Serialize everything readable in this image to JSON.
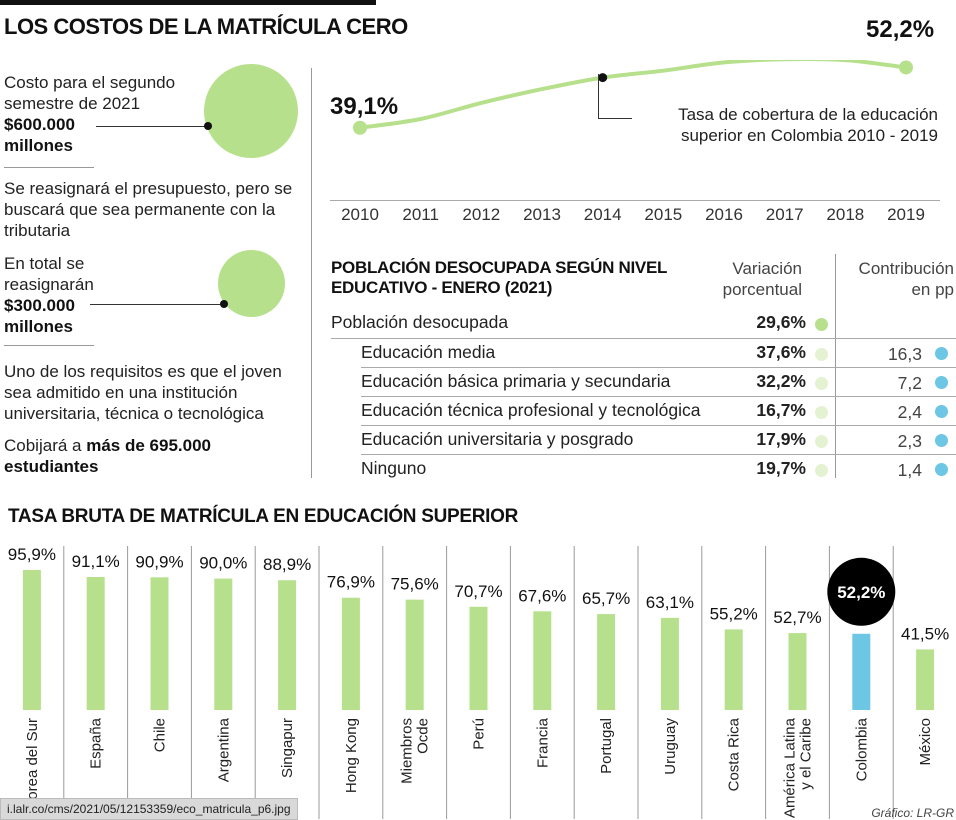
{
  "header": {
    "title": "LOS COSTOS DE LA MATRÍCULA CERO"
  },
  "left": {
    "block1": {
      "text": "Costo para el segundo semestre de 2021",
      "amount": "$600.000",
      "unit": "millones"
    },
    "block2": {
      "text": "Se reasignará el presupuesto, pero se buscará que sea permanente con la tributaria"
    },
    "block3": {
      "text": "En total se reasignarán",
      "amount": "$300.000",
      "unit": "millones"
    },
    "block4": {
      "text": "Uno de los requisitos es que el joven sea admitido en una institución universitaria, técnica o tecnológica"
    },
    "block5": {
      "pre": "Cobijará a ",
      "bold": "más de 695.000 estudiantes"
    }
  },
  "coverage": {
    "start_label": "39,1%",
    "end_label": "52,2%",
    "note": "Tasa de cobertura de la educación superior en Colombia 2010 - 2019"
  },
  "table": {
    "title": "POBLACIÓN DESOCUPADA SEGÚN NIVEL EDUCATIVO - ENERO (2021)",
    "col_var": "Variación porcentual",
    "col_contrib": "Contribución en pp",
    "total": {
      "label": "Población desocupada",
      "var": "29,6%"
    },
    "rows": [
      {
        "label": "Educación media",
        "var": "37,6%",
        "contrib": "16,3"
      },
      {
        "label": "Educación básica primaria y secundaria",
        "var": "32,2%",
        "contrib": "7,2"
      },
      {
        "label": "Educación técnica profesional y tecnológica",
        "var": "16,7%",
        "contrib": "2,4"
      },
      {
        "label": "Educación universitaria y posgrado",
        "var": "17,9%",
        "contrib": "2,3"
      },
      {
        "label": "Ninguno",
        "var": "19,7%",
        "contrib": "1,4"
      }
    ]
  },
  "section2": {
    "title": "TASA BRUTA DE MATRÍCULA EN EDUCACIÓN SUPERIOR"
  },
  "url_text": "i.lalr.co/cms/2021/05/12153359/eco_matricula_p6.jpg",
  "credit": "Gráfico: LR-GR",
  "colors": {
    "green": "#b7e08c",
    "pale_green": "#e4f2d2",
    "blue": "#6cc6e4",
    "black": "#000000"
  },
  "chart_data": [
    {
      "type": "line",
      "x": [
        2010,
        2011,
        2012,
        2013,
        2014,
        2015,
        2016,
        2017,
        2018,
        2019
      ],
      "series": [
        {
          "values": [
            39.1,
            41.0,
            44.5,
            47.5,
            50.0,
            51.5,
            53.3,
            54.0,
            53.8,
            52.2
          ]
        }
      ],
      "ylim": [
        36,
        56
      ],
      "grid": false
    },
    {
      "type": "bar",
      "title": "TASA BRUTA DE MATRÍCULA EN EDUCACIÓN SUPERIOR",
      "categories": [
        "Corea del Sur",
        "España",
        "Chile",
        "Argentina",
        "Singapur",
        "Hong Kong",
        "Miembros Ocde",
        "Perú",
        "Francia",
        "Portugal",
        "Uruguay",
        "Costa Rica",
        "América Latina y el Caribe",
        "Colombia",
        "México"
      ],
      "values": [
        95.9,
        91.1,
        90.9,
        90.0,
        88.9,
        76.9,
        75.6,
        70.7,
        67.6,
        65.7,
        63.1,
        55.2,
        52.7,
        52.2,
        41.5
      ],
      "labels": [
        "95,9%",
        "91,1%",
        "90,9%",
        "90,0%",
        "88,9%",
        "76,9%",
        "75,6%",
        "70,7%",
        "67,6%",
        "65,7%",
        "63,1%",
        "55,2%",
        "52,7%",
        "52,2%",
        "41,5%"
      ],
      "highlight": "Colombia",
      "ylim": [
        0,
        100
      ]
    }
  ]
}
